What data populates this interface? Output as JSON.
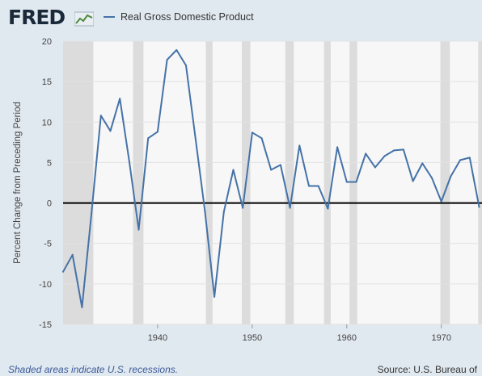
{
  "header": {
    "logo_text": "FRED",
    "logo_icon": "fred-graph-icon",
    "legend_label": "Real Gross Domestic Product"
  },
  "footer": {
    "recession_note": "Shaded areas indicate U.S. recessions.",
    "source_text": "Source: U.S. Bureau of"
  },
  "colors": {
    "series": "#4572a7",
    "recession": "#dcdcdc",
    "plot_bg": "#f7f7f7",
    "page_bg": "#e1e9f0",
    "zero_line": "#000000",
    "note": "#3b5998"
  },
  "chart_data": {
    "type": "line",
    "ylabel": "Percent Change from Preceding Period",
    "xlim": [
      1930,
      1974.3
    ],
    "ylim": [
      -15,
      20
    ],
    "yticks": [
      -15,
      -10,
      -5,
      0,
      5,
      10,
      15,
      20
    ],
    "xticks": [
      1940,
      1950,
      1960,
      1970
    ],
    "zero_line": true,
    "recessions": [
      [
        1929.6,
        1933.2
      ],
      [
        1937.4,
        1938.5
      ],
      [
        1945.1,
        1945.8
      ],
      [
        1948.9,
        1949.8
      ],
      [
        1953.5,
        1954.4
      ],
      [
        1957.6,
        1958.3
      ],
      [
        1960.3,
        1961.1
      ],
      [
        1969.9,
        1970.9
      ],
      [
        1973.9,
        1974.3
      ]
    ],
    "series": [
      {
        "name": "Real Gross Domestic Product",
        "x": [
          1930,
          1931,
          1932,
          1933,
          1934,
          1935,
          1936,
          1937,
          1938,
          1939,
          1940,
          1941,
          1942,
          1943,
          1944,
          1945,
          1946,
          1947,
          1948,
          1949,
          1950,
          1951,
          1952,
          1953,
          1954,
          1955,
          1956,
          1957,
          1958,
          1959,
          1960,
          1961,
          1962,
          1963,
          1964,
          1965,
          1966,
          1967,
          1968,
          1969,
          1970,
          1971,
          1972,
          1973,
          1974
        ],
        "values": [
          -8.5,
          -6.4,
          -12.9,
          -1.3,
          10.8,
          8.9,
          12.9,
          5.1,
          -3.3,
          8.0,
          8.8,
          17.7,
          18.9,
          17.0,
          8.0,
          -1.0,
          -11.6,
          -1.1,
          4.1,
          -0.6,
          8.7,
          8.0,
          4.1,
          4.7,
          -0.6,
          7.1,
          2.1,
          2.1,
          -0.7,
          6.9,
          2.6,
          2.6,
          6.1,
          4.4,
          5.8,
          6.5,
          6.6,
          2.7,
          4.9,
          3.1,
          0.2,
          3.3,
          5.3,
          5.6,
          -0.5
        ]
      }
    ]
  }
}
